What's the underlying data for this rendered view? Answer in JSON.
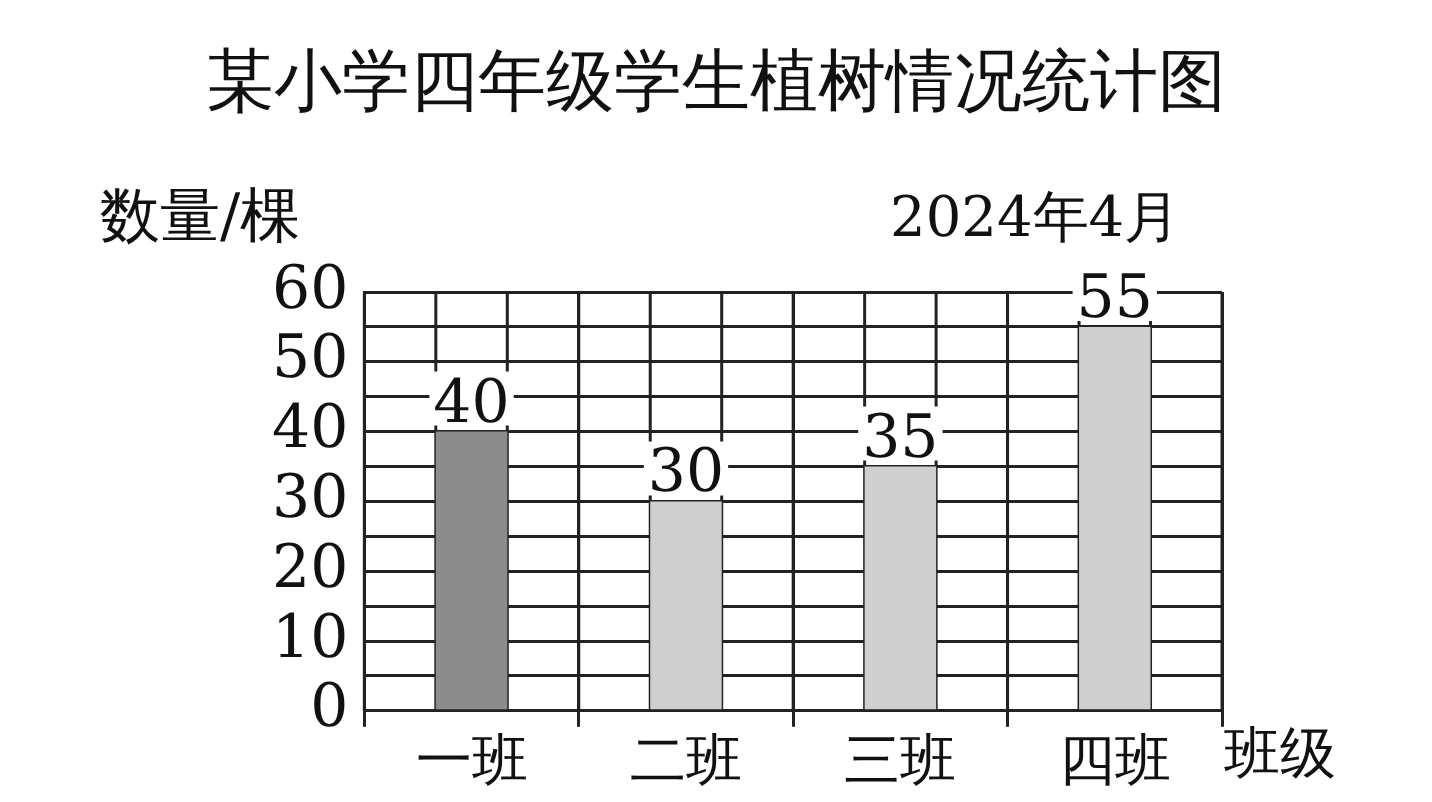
{
  "chart_data": {
    "type": "bar",
    "title": "某小学四年级学生植树情况统计图",
    "subtitle": "2024年4月",
    "ylabel": "数量/棵",
    "xlabel": "班级",
    "categories": [
      "一班",
      "二班",
      "三班",
      "四班"
    ],
    "values": [
      40,
      30,
      35,
      55
    ],
    "colors": [
      "#8c8c8c",
      "#cfcfcf",
      "#cfcfcf",
      "#cfcfcf"
    ],
    "ylim": [
      0,
      60
    ],
    "yticks": [
      0,
      {
        "value": 5,
        "label": null
      },
      10,
      {
        "value": 15,
        "label": null
      },
      20,
      {
        "value": 25,
        "label": null
      },
      30,
      {
        "value": 35,
        "label": null
      },
      40,
      {
        "value": 45,
        "label": null
      },
      50,
      {
        "value": 55,
        "label": null
      },
      60
    ],
    "grid": true,
    "data_labels": true
  }
}
